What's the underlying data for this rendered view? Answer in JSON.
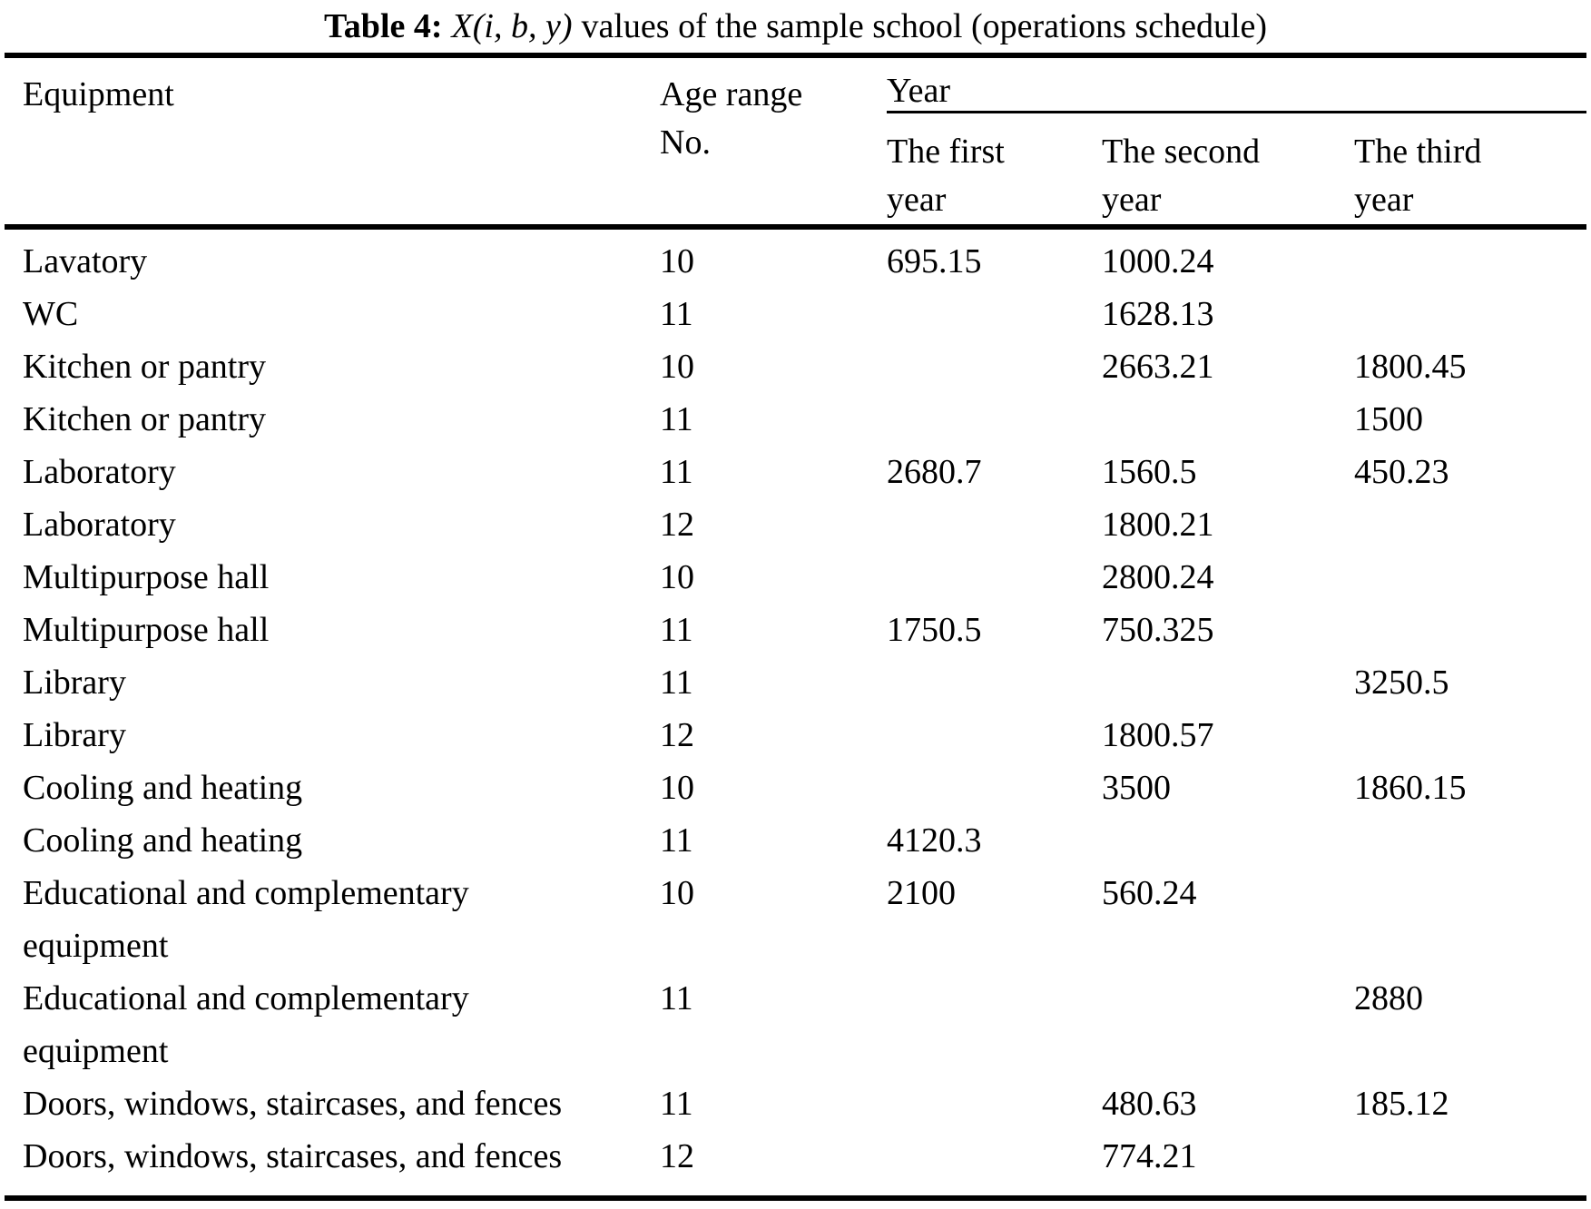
{
  "title": {
    "label": "Table 4:",
    "formula": "X(i, b, y)",
    "rest": "values of the sample school (operations schedule)"
  },
  "table": {
    "col1_header": "Equipment",
    "col2_header": "Age range\nNo.",
    "year_header": "Year",
    "year_subheaders": [
      "The first\nyear",
      "The second\nyear",
      "The third\nyear"
    ],
    "rows": [
      {
        "equipment": "Lavatory",
        "age": "10",
        "y1": "695.15",
        "y2": "1000.24",
        "y3": ""
      },
      {
        "equipment": "WC",
        "age": "11",
        "y1": "",
        "y2": "1628.13",
        "y3": ""
      },
      {
        "equipment": "Kitchen or pantry",
        "age": "10",
        "y1": "",
        "y2": "2663.21",
        "y3": "1800.45"
      },
      {
        "equipment": "Kitchen or pantry",
        "age": "11",
        "y1": "",
        "y2": "",
        "y3": "1500"
      },
      {
        "equipment": "Laboratory",
        "age": "11",
        "y1": "2680.7",
        "y2": "1560.5",
        "y3": "450.23"
      },
      {
        "equipment": "Laboratory",
        "age": "12",
        "y1": "",
        "y2": "1800.21",
        "y3": ""
      },
      {
        "equipment": "Multipurpose hall",
        "age": "10",
        "y1": "",
        "y2": "2800.24",
        "y3": ""
      },
      {
        "equipment": "Multipurpose hall",
        "age": "11",
        "y1": "1750.5",
        "y2": "750.325",
        "y3": ""
      },
      {
        "equipment": "Library",
        "age": "11",
        "y1": "",
        "y2": "",
        "y3": "3250.5"
      },
      {
        "equipment": "Library",
        "age": "12",
        "y1": "",
        "y2": "1800.57",
        "y3": ""
      },
      {
        "equipment": "Cooling and heating",
        "age": "10",
        "y1": "",
        "y2": "3500",
        "y3": "1860.15"
      },
      {
        "equipment": "Cooling and heating",
        "age": "11",
        "y1": "4120.3",
        "y2": "",
        "y3": ""
      },
      {
        "equipment": "Educational and complementary\nequipment",
        "age": "10",
        "y1": "2100",
        "y2": "560.24",
        "y3": ""
      },
      {
        "equipment": "Educational and complementary\nequipment",
        "age": "11",
        "y1": "",
        "y2": "",
        "y3": "2880"
      },
      {
        "equipment": "Doors, windows, staircases, and fences",
        "age": "11",
        "y1": "",
        "y2": "480.63",
        "y3": "185.12"
      },
      {
        "equipment": "Doors, windows, staircases, and fences",
        "age": "12",
        "y1": "",
        "y2": "774.21",
        "y3": ""
      }
    ]
  }
}
